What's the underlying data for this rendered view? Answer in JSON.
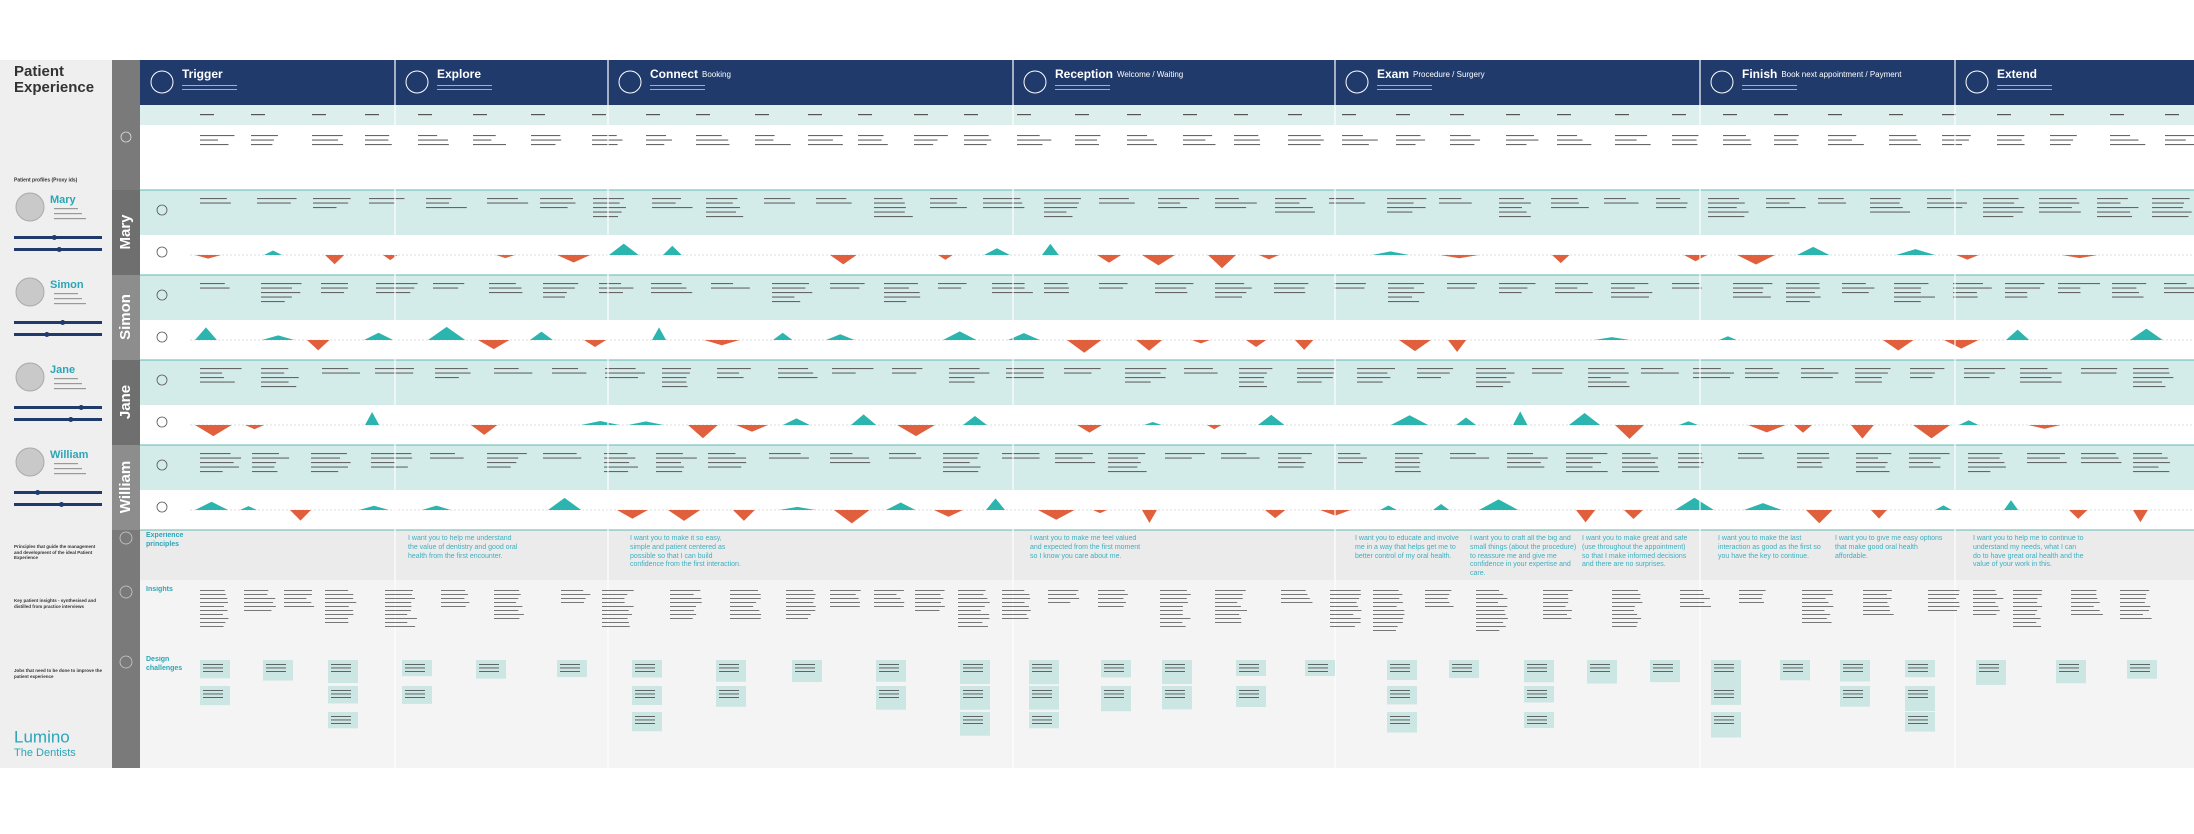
{
  "header": {
    "title": "Patient Experience",
    "profiles_label": "Patient profiles (Proxy ids)"
  },
  "stages": [
    {
      "name": "Trigger"
    },
    {
      "name": "Explore"
    },
    {
      "name": "Connect",
      "subtitle": "Booking"
    },
    {
      "name": "Reception",
      "subtitle": "Welcome / Waiting"
    },
    {
      "name": "Exam",
      "subtitle": "Procedure / Surgery"
    },
    {
      "name": "Finish",
      "subtitle": "Book next appointment / Payment"
    },
    {
      "name": "Extend"
    }
  ],
  "personas": [
    {
      "name": "Mary"
    },
    {
      "name": "Simon"
    },
    {
      "name": "Jane"
    },
    {
      "name": "William"
    }
  ],
  "sections": {
    "principles": {
      "label": "Experience principles",
      "note": "Principles that guide the management and development of the ideal Patient Experience"
    },
    "insights": {
      "label": "Insights",
      "note": "Key patient insights - synthesised and distilled from practice interviews"
    },
    "challenges": {
      "label": "Design challenges",
      "note": "Jobs that need to be done to improve the patient experience"
    }
  },
  "principles": [
    "I want you to help me understand the value of dentistry and good oral health from the first encounter.",
    "I want you to make it so easy, simple and patient centered as possible so that I can build confidence from the first interaction.",
    "I want you to make me feel valued and expected from the first moment so I know you care about me.",
    "I want you to educate and involve me in a way that helps get me to better control of my oral health.",
    "I want you to craft all the big and small things (about the procedure) to reassure me and give me confidence in your expertise and care.",
    "I want you to make great and safe (use throughout the appointment) so that I make informed decisions and there are no surprises.",
    "I want you to make the last interaction as good as the first so you have the key to continue.",
    "I want you to give me easy options that make good oral health affordable.",
    "I want you to help me to continue to understand my needs, what I can do to have great oral health and the value of your work in this."
  ],
  "logo": {
    "name": "Lumino",
    "tagline": "The Dentists"
  }
}
